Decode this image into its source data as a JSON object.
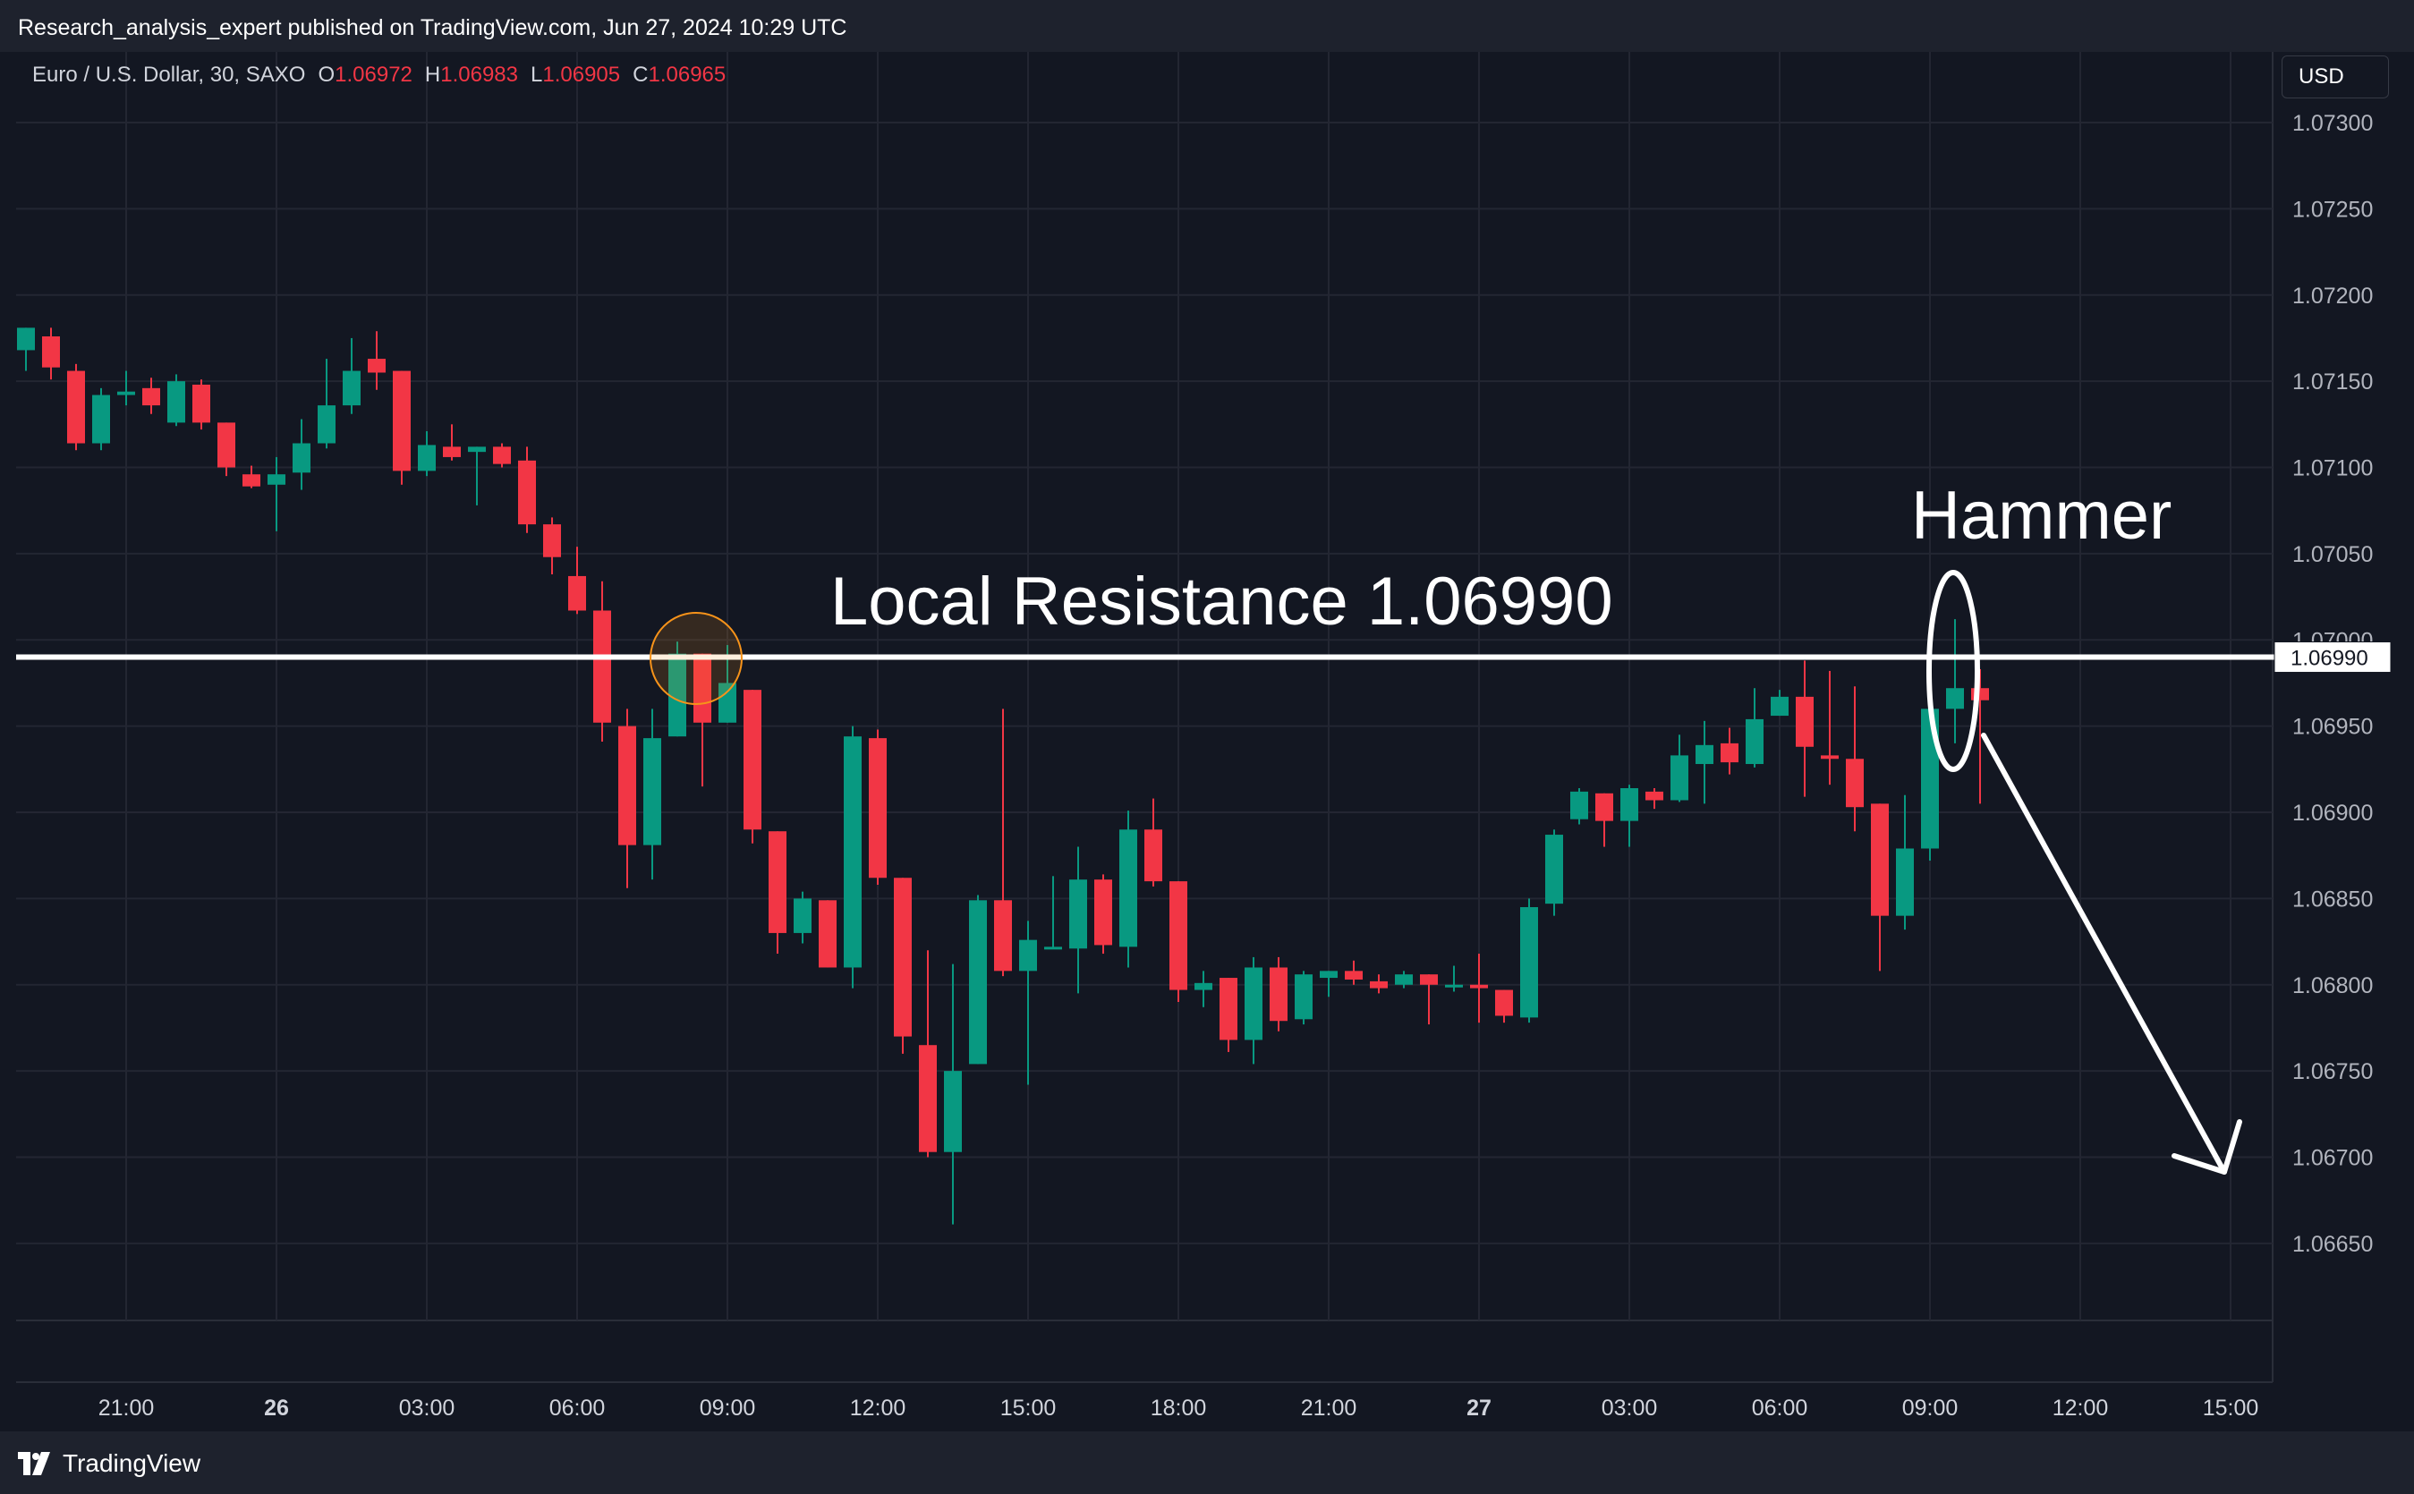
{
  "header": {
    "publisher_line": "Research_analysis_expert published on TradingView.com, Jun 27, 2024 10:29 UTC"
  },
  "legend": {
    "symbol": "Euro / U.S. Dollar, 30, SAXO",
    "open_label": "O",
    "open": "1.06972",
    "high_label": "H",
    "high": "1.06983",
    "low_label": "L",
    "low": "1.06905",
    "close_label": "C",
    "close": "1.06965"
  },
  "currency_button": "USD",
  "footer": {
    "brand": "TradingView"
  },
  "colors": {
    "background": "#131722",
    "up": "#089981",
    "down": "#f23645",
    "grid": "#232632",
    "annotation": "#ffffff",
    "highlight_circle": "#f7931a"
  },
  "chart_data": {
    "type": "candlestick",
    "title": "",
    "interval_minutes": 30,
    "y_axis": {
      "side": "right",
      "ylim": [
        1.0662,
        1.0734
      ],
      "ticks": [
        "1.07300",
        "1.07250",
        "1.07200",
        "1.07150",
        "1.07100",
        "1.07050",
        "1.07000",
        "1.06950",
        "1.06900",
        "1.06850",
        "1.06800",
        "1.06750",
        "1.06700",
        "1.06650"
      ]
    },
    "x_axis": {
      "ticks": [
        {
          "label": "21:00",
          "index": 4,
          "bold": false
        },
        {
          "label": "26",
          "index": 10,
          "bold": true
        },
        {
          "label": "03:00",
          "index": 16,
          "bold": false
        },
        {
          "label": "06:00",
          "index": 22,
          "bold": false
        },
        {
          "label": "09:00",
          "index": 28,
          "bold": false
        },
        {
          "label": "12:00",
          "index": 34,
          "bold": false
        },
        {
          "label": "15:00",
          "index": 40,
          "bold": false
        },
        {
          "label": "18:00",
          "index": 46,
          "bold": false
        },
        {
          "label": "21:00",
          "index": 52,
          "bold": false
        },
        {
          "label": "27",
          "index": 58,
          "bold": true
        },
        {
          "label": "03:00",
          "index": 64,
          "bold": false
        },
        {
          "label": "06:00",
          "index": 70,
          "bold": false
        },
        {
          "label": "09:00",
          "index": 76,
          "bold": false
        },
        {
          "label": "12:00",
          "index": 82,
          "bold": false
        },
        {
          "label": "15:00",
          "index": 88,
          "bold": false
        }
      ]
    },
    "grid": true,
    "candles": [
      {
        "o": 1.07168,
        "h": 1.07178,
        "l": 1.07156,
        "c": 1.07181
      },
      {
        "o": 1.07176,
        "h": 1.07181,
        "l": 1.07151,
        "c": 1.07158
      },
      {
        "o": 1.07156,
        "h": 1.0716,
        "l": 1.0711,
        "c": 1.07114
      },
      {
        "o": 1.07114,
        "h": 1.07146,
        "l": 1.0711,
        "c": 1.07142
      },
      {
        "o": 1.07142,
        "h": 1.07156,
        "l": 1.07136,
        "c": 1.07144
      },
      {
        "o": 1.07146,
        "h": 1.07152,
        "l": 1.07131,
        "c": 1.07136
      },
      {
        "o": 1.07126,
        "h": 1.07154,
        "l": 1.07124,
        "c": 1.0715
      },
      {
        "o": 1.07148,
        "h": 1.07151,
        "l": 1.07122,
        "c": 1.07126
      },
      {
        "o": 1.07126,
        "h": 1.07126,
        "l": 1.07095,
        "c": 1.071
      },
      {
        "o": 1.07096,
        "h": 1.07101,
        "l": 1.07088,
        "c": 1.07089
      },
      {
        "o": 1.0709,
        "h": 1.07106,
        "l": 1.07063,
        "c": 1.07096
      },
      {
        "o": 1.07097,
        "h": 1.07128,
        "l": 1.07087,
        "c": 1.07114
      },
      {
        "o": 1.07114,
        "h": 1.07163,
        "l": 1.07111,
        "c": 1.07136
      },
      {
        "o": 1.07136,
        "h": 1.07175,
        "l": 1.07131,
        "c": 1.07156
      },
      {
        "o": 1.07163,
        "h": 1.07179,
        "l": 1.07145,
        "c": 1.07155
      },
      {
        "o": 1.07156,
        "h": 1.07156,
        "l": 1.0709,
        "c": 1.07098
      },
      {
        "o": 1.07098,
        "h": 1.07121,
        "l": 1.07095,
        "c": 1.07113
      },
      {
        "o": 1.07112,
        "h": 1.07125,
        "l": 1.07104,
        "c": 1.07106
      },
      {
        "o": 1.07109,
        "h": 1.07112,
        "l": 1.07078,
        "c": 1.07112
      },
      {
        "o": 1.07112,
        "h": 1.07114,
        "l": 1.071,
        "c": 1.07102
      },
      {
        "o": 1.07104,
        "h": 1.07112,
        "l": 1.07062,
        "c": 1.07067
      },
      {
        "o": 1.07067,
        "h": 1.07071,
        "l": 1.07038,
        "c": 1.07048
      },
      {
        "o": 1.07037,
        "h": 1.07054,
        "l": 1.07015,
        "c": 1.07017
      },
      {
        "o": 1.07017,
        "h": 1.07034,
        "l": 1.06941,
        "c": 1.06952
      },
      {
        "o": 1.0695,
        "h": 1.0696,
        "l": 1.06856,
        "c": 1.06881
      },
      {
        "o": 1.06881,
        "h": 1.0696,
        "l": 1.06861,
        "c": 1.06943
      },
      {
        "o": 1.06944,
        "h": 1.06999,
        "l": 1.06944,
        "c": 1.06992
      },
      {
        "o": 1.06992,
        "h": 1.06992,
        "l": 1.06915,
        "c": 1.06952
      },
      {
        "o": 1.06952,
        "h": 1.06997,
        "l": 1.06952,
        "c": 1.06975
      },
      {
        "o": 1.06971,
        "h": 1.06971,
        "l": 1.06882,
        "c": 1.0689
      },
      {
        "o": 1.06889,
        "h": 1.06889,
        "l": 1.06818,
        "c": 1.0683
      },
      {
        "o": 1.0683,
        "h": 1.06854,
        "l": 1.06824,
        "c": 1.0685
      },
      {
        "o": 1.06849,
        "h": 1.06849,
        "l": 1.06815,
        "c": 1.0681
      },
      {
        "o": 1.0681,
        "h": 1.0695,
        "l": 1.06798,
        "c": 1.06944
      },
      {
        "o": 1.06943,
        "h": 1.06948,
        "l": 1.06858,
        "c": 1.06862
      },
      {
        "o": 1.06862,
        "h": 1.06862,
        "l": 1.0676,
        "c": 1.0677
      },
      {
        "o": 1.06765,
        "h": 1.0682,
        "l": 1.067,
        "c": 1.06703
      },
      {
        "o": 1.06703,
        "h": 1.06812,
        "l": 1.06661,
        "c": 1.0675
      },
      {
        "o": 1.06754,
        "h": 1.06852,
        "l": 1.06754,
        "c": 1.06849
      },
      {
        "o": 1.06849,
        "h": 1.0696,
        "l": 1.06805,
        "c": 1.06808
      },
      {
        "o": 1.06808,
        "h": 1.06837,
        "l": 1.06742,
        "c": 1.06826
      },
      {
        "o": 1.06821,
        "h": 1.06863,
        "l": 1.06822,
        "c": 1.06822
      },
      {
        "o": 1.06821,
        "h": 1.0688,
        "l": 1.06795,
        "c": 1.06861
      },
      {
        "o": 1.06861,
        "h": 1.06864,
        "l": 1.06818,
        "c": 1.06823
      },
      {
        "o": 1.06822,
        "h": 1.06901,
        "l": 1.0681,
        "c": 1.0689
      },
      {
        "o": 1.0689,
        "h": 1.06908,
        "l": 1.06857,
        "c": 1.0686
      },
      {
        "o": 1.0686,
        "h": 1.0686,
        "l": 1.0679,
        "c": 1.06797
      },
      {
        "o": 1.06797,
        "h": 1.06808,
        "l": 1.06787,
        "c": 1.06801
      },
      {
        "o": 1.06804,
        "h": 1.06804,
        "l": 1.06761,
        "c": 1.06768
      },
      {
        "o": 1.06768,
        "h": 1.06816,
        "l": 1.06754,
        "c": 1.0681
      },
      {
        "o": 1.0681,
        "h": 1.06816,
        "l": 1.06773,
        "c": 1.06779
      },
      {
        "o": 1.0678,
        "h": 1.06808,
        "l": 1.06777,
        "c": 1.06806
      },
      {
        "o": 1.06804,
        "h": 1.06808,
        "l": 1.06793,
        "c": 1.06808
      },
      {
        "o": 1.06808,
        "h": 1.06814,
        "l": 1.068,
        "c": 1.06803
      },
      {
        "o": 1.06802,
        "h": 1.06806,
        "l": 1.06795,
        "c": 1.06798
      },
      {
        "o": 1.068,
        "h": 1.06808,
        "l": 1.06798,
        "c": 1.06806
      },
      {
        "o": 1.06806,
        "h": 1.06806,
        "l": 1.06777,
        "c": 1.068
      },
      {
        "o": 1.06799,
        "h": 1.06811,
        "l": 1.06796,
        "c": 1.068
      },
      {
        "o": 1.068,
        "h": 1.06818,
        "l": 1.06778,
        "c": 1.06798
      },
      {
        "o": 1.06797,
        "h": 1.06797,
        "l": 1.06778,
        "c": 1.06782
      },
      {
        "o": 1.06781,
        "h": 1.0685,
        "l": 1.06778,
        "c": 1.06845
      },
      {
        "o": 1.06847,
        "h": 1.0689,
        "l": 1.0684,
        "c": 1.06887
      },
      {
        "o": 1.06896,
        "h": 1.06914,
        "l": 1.06893,
        "c": 1.06912
      },
      {
        "o": 1.06911,
        "h": 1.06911,
        "l": 1.0688,
        "c": 1.06895
      },
      {
        "o": 1.06895,
        "h": 1.06916,
        "l": 1.0688,
        "c": 1.06914
      },
      {
        "o": 1.06912,
        "h": 1.06914,
        "l": 1.06902,
        "c": 1.06907
      },
      {
        "o": 1.06907,
        "h": 1.06945,
        "l": 1.06906,
        "c": 1.06933
      },
      {
        "o": 1.06928,
        "h": 1.06953,
        "l": 1.06905,
        "c": 1.06939
      },
      {
        "o": 1.0694,
        "h": 1.06949,
        "l": 1.06922,
        "c": 1.06929
      },
      {
        "o": 1.06928,
        "h": 1.06972,
        "l": 1.06926,
        "c": 1.06954
      },
      {
        "o": 1.06956,
        "h": 1.06971,
        "l": 1.06958,
        "c": 1.06967
      },
      {
        "o": 1.06967,
        "h": 1.06988,
        "l": 1.06909,
        "c": 1.06938
      },
      {
        "o": 1.06933,
        "h": 1.06982,
        "l": 1.06916,
        "c": 1.06931
      },
      {
        "o": 1.06931,
        "h": 1.06973,
        "l": 1.06889,
        "c": 1.06903
      },
      {
        "o": 1.06905,
        "h": 1.06905,
        "l": 1.06808,
        "c": 1.0684
      },
      {
        "o": 1.0684,
        "h": 1.0691,
        "l": 1.06832,
        "c": 1.06879
      },
      {
        "o": 1.06879,
        "h": 1.0696,
        "l": 1.06872,
        "c": 1.0696
      },
      {
        "o": 1.0696,
        "h": 1.07012,
        "l": 1.0694,
        "c": 1.06972
      },
      {
        "o": 1.06972,
        "h": 1.06983,
        "l": 1.06905,
        "c": 1.06965
      }
    ],
    "annotations": [
      {
        "type": "horizontal_line",
        "price": 1.0699,
        "label": "1.06990"
      },
      {
        "type": "text",
        "text": "Local Resistance 1.06990"
      },
      {
        "type": "text",
        "text": "Hammer"
      },
      {
        "type": "ellipse",
        "around_candle_index": 77
      },
      {
        "type": "circle",
        "around_candle_index": 27
      },
      {
        "type": "arrow",
        "from": {
          "index": 78.5,
          "price": 1.06955
        },
        "to": {
          "index": 88.5,
          "price": 1.0669
        }
      }
    ]
  }
}
